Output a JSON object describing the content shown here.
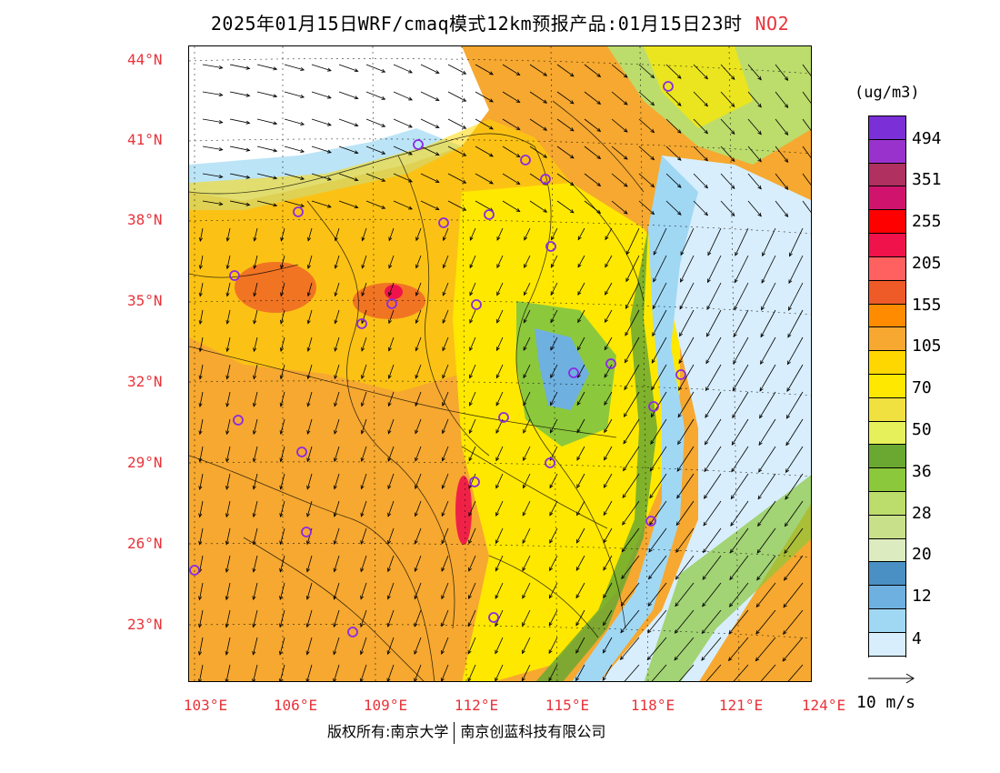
{
  "title": {
    "main": "2025年01月15日WRF/cmaq模式12km预报产品:01月15日23时",
    "species": "NO2"
  },
  "colors": {
    "label_red": "#e8333a",
    "station_circle": "#8a2be2"
  },
  "axes": {
    "lat_labels": [
      "44°N",
      "41°N",
      "38°N",
      "35°N",
      "32°N",
      "29°N",
      "26°N",
      "23°N"
    ],
    "lon_labels": [
      "103°E",
      "106°E",
      "109°E",
      "112°E",
      "115°E",
      "118°E",
      "121°E",
      "124°E"
    ]
  },
  "legend": {
    "unit": "(ug/m3)",
    "colors": [
      "#7b2fd6",
      "#9932cc",
      "#b03060",
      "#d0146e",
      "#ff0000",
      "#f0124a",
      "#ff6060",
      "#ee5a28",
      "#ff8c00",
      "#f6a830",
      "#ffd700",
      "#ffe800",
      "#f0e040",
      "#e6f05a",
      "#6aa832",
      "#8cc83c",
      "#bcdc6c",
      "#c8e08a",
      "#dcecc0",
      "#4a90c4",
      "#6eb0e0",
      "#a0d8f4",
      "#d8eefc"
    ],
    "ticks": [
      "494",
      "351",
      "255",
      "205",
      "155",
      "105",
      "70",
      "50",
      "36",
      "28",
      "20",
      "12",
      "4"
    ]
  },
  "wind_reference": {
    "label": "10 m/s"
  },
  "footer": {
    "copyright_left": "版权所有:南京大学",
    "copyright_right": "南京创蓝科技有限公司"
  }
}
